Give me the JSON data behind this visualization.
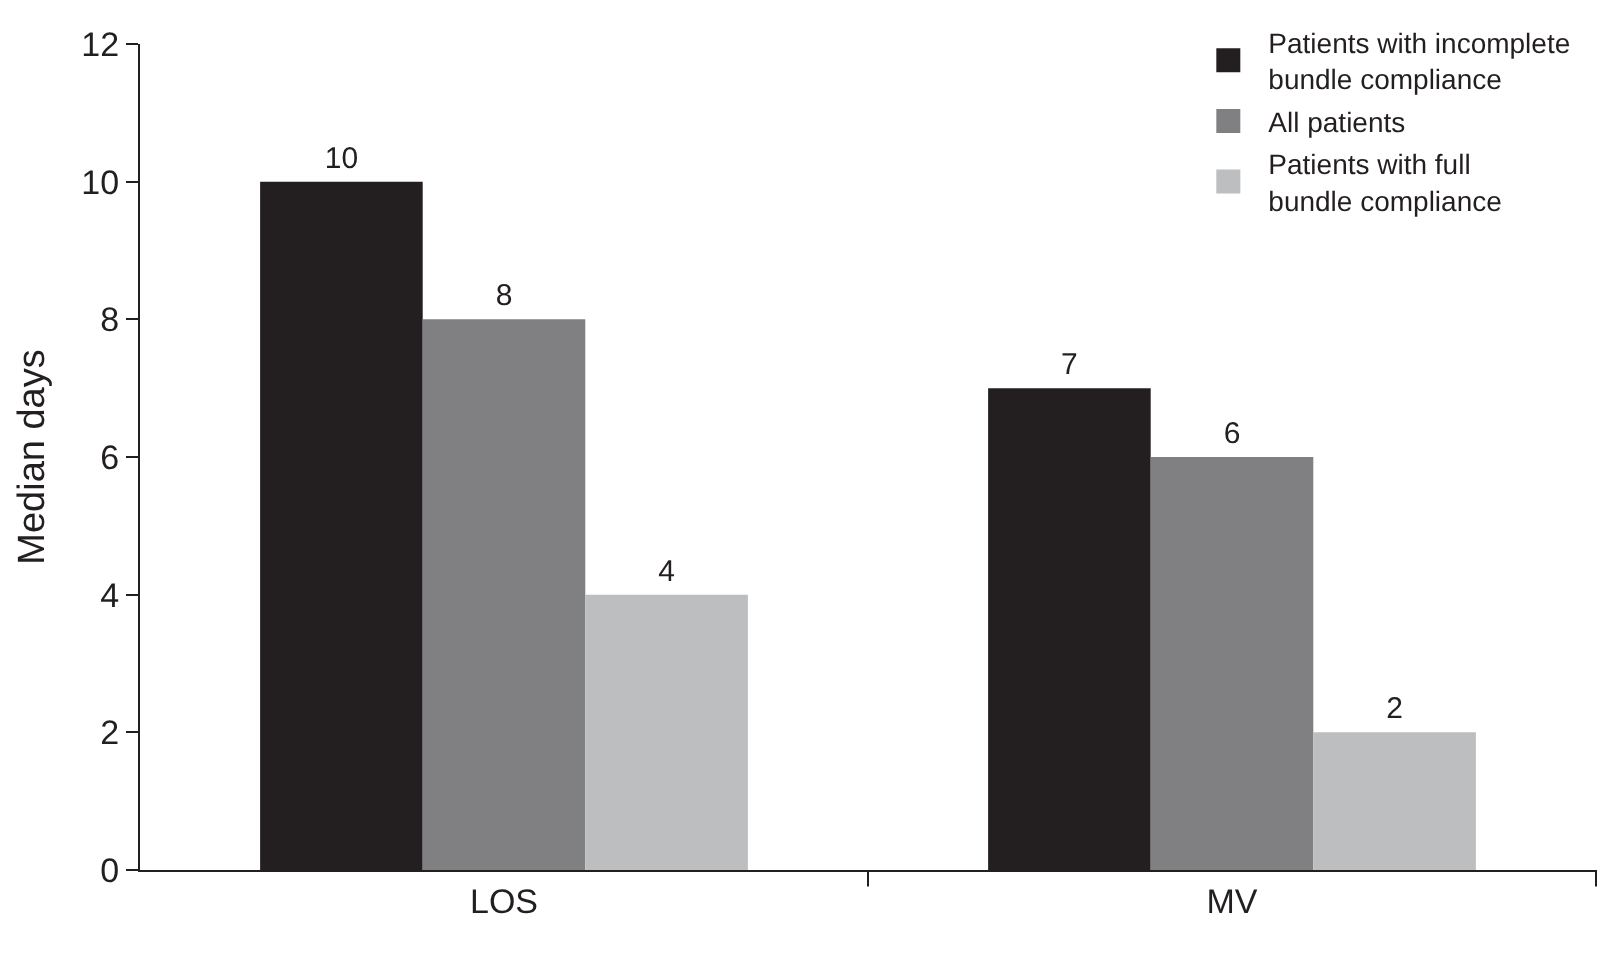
{
  "chart_data": {
    "type": "bar",
    "ylabel": "Median days",
    "categories": [
      "LOS",
      "MV"
    ],
    "series": [
      {
        "name": "Patients with incomplete bundle compliance",
        "color": "#231f20",
        "values": [
          10,
          7
        ]
      },
      {
        "name": "All patients",
        "color": "#808083",
        "values": [
          8,
          6
        ]
      },
      {
        "name": "Patients with full bundle compliance",
        "color": "#bcbec0",
        "values": [
          4,
          2
        ]
      }
    ],
    "ylim": [
      0,
      12
    ],
    "yticks": [
      0,
      2,
      4,
      6,
      8,
      10,
      12
    ],
    "data_labels": true,
    "grid": false,
    "legend": "top right"
  }
}
